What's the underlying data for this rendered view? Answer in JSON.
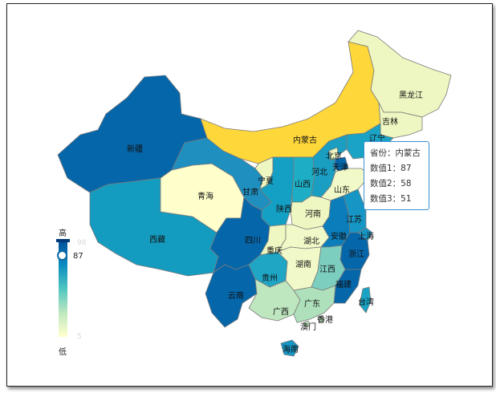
{
  "legend": {
    "high_label": "高",
    "low_label": "低",
    "current_value": "87",
    "max_value": "98",
    "min_value": "5",
    "colors": [
      "#00509a",
      "#0a8bc0",
      "#4fc6c0",
      "#bfe7bf",
      "#ffffcc"
    ]
  },
  "tooltip": {
    "province_line": "省份：内蒙古",
    "value1_line": "数值1：87",
    "value2_line": "数值2：58",
    "value3_line": "数值3：51"
  },
  "provinces": [
    {
      "id": "xinjiang",
      "name": "新疆",
      "color": "#0566aa"
    },
    {
      "id": "xizang",
      "name": "西藏",
      "color": "#149cc0"
    },
    {
      "id": "qinghai",
      "name": "青海",
      "color": "#ffffcc"
    },
    {
      "id": "gansu",
      "name": "甘肃",
      "color": "#1f8fc0"
    },
    {
      "id": "neimenggu",
      "name": "内蒙古",
      "color": "#fed73a"
    },
    {
      "id": "heilongjiang",
      "name": "黑龙江",
      "color": "#eef7c2"
    },
    {
      "id": "jilin",
      "name": "吉林",
      "color": "#eef7c2"
    },
    {
      "id": "liaoning",
      "name": "辽宁",
      "color": "#1aa3c4"
    },
    {
      "id": "ningxia",
      "name": "宁夏",
      "color": "#eef7c2"
    },
    {
      "id": "shaanxi",
      "name": "陕西",
      "color": "#14a0c4"
    },
    {
      "id": "shanxi",
      "name": "山西",
      "color": "#1daec6"
    },
    {
      "id": "hebei",
      "name": "河北",
      "color": "#1a9ec2"
    },
    {
      "id": "beijing",
      "name": "北京",
      "color": "#eef7c2"
    },
    {
      "id": "tianjin",
      "name": "天津",
      "color": "#0566aa"
    },
    {
      "id": "shandong",
      "name": "山东",
      "color": "#f2f9c8"
    },
    {
      "id": "henan",
      "name": "河南",
      "color": "#eef7c2"
    },
    {
      "id": "sichuan",
      "name": "四川",
      "color": "#0566aa"
    },
    {
      "id": "chongqing",
      "name": "重庆",
      "color": "#eef7c2"
    },
    {
      "id": "hubei",
      "name": "湖北",
      "color": "#f2f9c8"
    },
    {
      "id": "anhui",
      "name": "安徽",
      "color": "#0b7dbb"
    },
    {
      "id": "jiangsu",
      "name": "江苏",
      "color": "#1596c4"
    },
    {
      "id": "shanghai",
      "name": "上海",
      "color": "#1596c4"
    },
    {
      "id": "zhejiang",
      "name": "浙江",
      "color": "#0566aa"
    },
    {
      "id": "yunnan",
      "name": "云南",
      "color": "#0566aa"
    },
    {
      "id": "guizhou",
      "name": "贵州",
      "color": "#1fa6c5"
    },
    {
      "id": "hunan",
      "name": "湖南",
      "color": "#f2f9c8"
    },
    {
      "id": "jiangxi",
      "name": "江西",
      "color": "#7ccfbe"
    },
    {
      "id": "fujian",
      "name": "福建",
      "color": "#0566aa"
    },
    {
      "id": "guangxi",
      "name": "广西",
      "color": "#bfe7bf"
    },
    {
      "id": "guangdong",
      "name": "广东",
      "color": "#aee0bb"
    },
    {
      "id": "hainan",
      "name": "海南",
      "color": "#1596c4"
    },
    {
      "id": "taiwan",
      "name": "台湾",
      "color": "#1aa3c4"
    },
    {
      "id": "aomen",
      "name": "澳门",
      "color": "#bfe7bf"
    },
    {
      "id": "xianggang",
      "name": "香港",
      "color": "#bfe7bf"
    }
  ]
}
